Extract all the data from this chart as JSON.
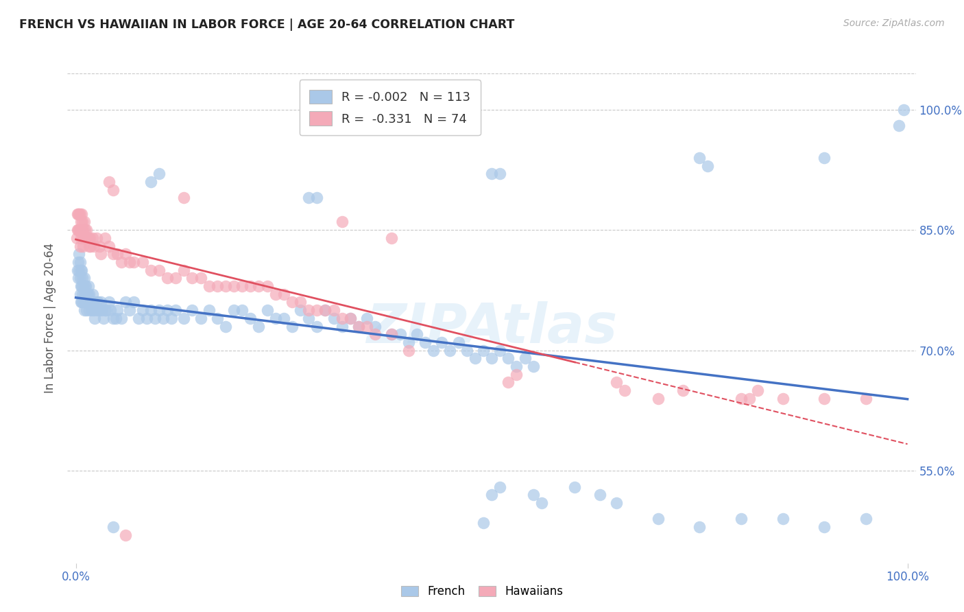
{
  "title": "FRENCH VS HAWAIIAN IN LABOR FORCE | AGE 20-64 CORRELATION CHART",
  "source": "Source: ZipAtlas.com",
  "ylabel": "In Labor Force | Age 20-64",
  "french_R": "-0.002",
  "french_N": "113",
  "hawaiian_R": "-0.331",
  "hawaiian_N": "74",
  "french_color": "#aac8e8",
  "hawaiian_color": "#f4aab8",
  "french_line_color": "#4472c4",
  "hawaiian_line_color": "#e05060",
  "watermark": "ZIPAtlas",
  "xlim": [
    -0.01,
    1.01
  ],
  "ylim": [
    0.435,
    1.045
  ],
  "ytick_vals": [
    0.55,
    0.7,
    0.85,
    1.0
  ],
  "ytick_labels": [
    "55.0%",
    "70.0%",
    "85.0%",
    "100.0%"
  ],
  "xtick_vals": [
    0.0,
    1.0
  ],
  "xtick_labels": [
    "0.0%",
    "100.0%"
  ],
  "french_scatter": [
    [
      0.002,
      0.8
    ],
    [
      0.003,
      0.81
    ],
    [
      0.003,
      0.79
    ],
    [
      0.004,
      0.8
    ],
    [
      0.004,
      0.82
    ],
    [
      0.005,
      0.81
    ],
    [
      0.005,
      0.79
    ],
    [
      0.005,
      0.77
    ],
    [
      0.006,
      0.8
    ],
    [
      0.006,
      0.78
    ],
    [
      0.006,
      0.76
    ],
    [
      0.007,
      0.8
    ],
    [
      0.007,
      0.78
    ],
    [
      0.007,
      0.76
    ],
    [
      0.008,
      0.79
    ],
    [
      0.008,
      0.77
    ],
    [
      0.009,
      0.78
    ],
    [
      0.009,
      0.76
    ],
    [
      0.01,
      0.79
    ],
    [
      0.01,
      0.77
    ],
    [
      0.01,
      0.75
    ],
    [
      0.011,
      0.78
    ],
    [
      0.011,
      0.76
    ],
    [
      0.012,
      0.78
    ],
    [
      0.012,
      0.76
    ],
    [
      0.013,
      0.77
    ],
    [
      0.013,
      0.75
    ],
    [
      0.014,
      0.77
    ],
    [
      0.015,
      0.78
    ],
    [
      0.015,
      0.76
    ],
    [
      0.016,
      0.77
    ],
    [
      0.016,
      0.75
    ],
    [
      0.017,
      0.76
    ],
    [
      0.018,
      0.76
    ],
    [
      0.019,
      0.75
    ],
    [
      0.02,
      0.77
    ],
    [
      0.021,
      0.76
    ],
    [
      0.022,
      0.75
    ],
    [
      0.023,
      0.74
    ],
    [
      0.025,
      0.76
    ],
    [
      0.026,
      0.75
    ],
    [
      0.027,
      0.76
    ],
    [
      0.028,
      0.75
    ],
    [
      0.03,
      0.76
    ],
    [
      0.031,
      0.75
    ],
    [
      0.033,
      0.74
    ],
    [
      0.035,
      0.75
    ],
    [
      0.037,
      0.75
    ],
    [
      0.04,
      0.76
    ],
    [
      0.042,
      0.75
    ],
    [
      0.045,
      0.74
    ],
    [
      0.048,
      0.74
    ],
    [
      0.05,
      0.75
    ],
    [
      0.055,
      0.74
    ],
    [
      0.06,
      0.76
    ],
    [
      0.065,
      0.75
    ],
    [
      0.07,
      0.76
    ],
    [
      0.075,
      0.74
    ],
    [
      0.08,
      0.75
    ],
    [
      0.085,
      0.74
    ],
    [
      0.09,
      0.75
    ],
    [
      0.095,
      0.74
    ],
    [
      0.1,
      0.75
    ],
    [
      0.105,
      0.74
    ],
    [
      0.11,
      0.75
    ],
    [
      0.115,
      0.74
    ],
    [
      0.12,
      0.75
    ],
    [
      0.13,
      0.74
    ],
    [
      0.14,
      0.75
    ],
    [
      0.15,
      0.74
    ],
    [
      0.16,
      0.75
    ],
    [
      0.17,
      0.74
    ],
    [
      0.18,
      0.73
    ],
    [
      0.19,
      0.75
    ],
    [
      0.2,
      0.75
    ],
    [
      0.21,
      0.74
    ],
    [
      0.22,
      0.73
    ],
    [
      0.23,
      0.75
    ],
    [
      0.24,
      0.74
    ],
    [
      0.25,
      0.74
    ],
    [
      0.26,
      0.73
    ],
    [
      0.27,
      0.75
    ],
    [
      0.28,
      0.74
    ],
    [
      0.29,
      0.73
    ],
    [
      0.3,
      0.75
    ],
    [
      0.31,
      0.74
    ],
    [
      0.32,
      0.73
    ],
    [
      0.33,
      0.74
    ],
    [
      0.34,
      0.73
    ],
    [
      0.35,
      0.74
    ],
    [
      0.36,
      0.73
    ],
    [
      0.38,
      0.72
    ],
    [
      0.39,
      0.72
    ],
    [
      0.4,
      0.71
    ],
    [
      0.41,
      0.72
    ],
    [
      0.42,
      0.71
    ],
    [
      0.43,
      0.7
    ],
    [
      0.44,
      0.71
    ],
    [
      0.45,
      0.7
    ],
    [
      0.46,
      0.71
    ],
    [
      0.47,
      0.7
    ],
    [
      0.48,
      0.69
    ],
    [
      0.49,
      0.7
    ],
    [
      0.5,
      0.69
    ],
    [
      0.51,
      0.7
    ],
    [
      0.52,
      0.69
    ],
    [
      0.53,
      0.68
    ],
    [
      0.54,
      0.69
    ],
    [
      0.55,
      0.68
    ],
    [
      0.09,
      0.91
    ],
    [
      0.1,
      0.92
    ],
    [
      0.28,
      0.89
    ],
    [
      0.29,
      0.89
    ],
    [
      0.5,
      0.92
    ],
    [
      0.51,
      0.92
    ],
    [
      0.75,
      0.94
    ],
    [
      0.76,
      0.93
    ],
    [
      0.9,
      0.94
    ],
    [
      0.99,
      0.98
    ],
    [
      0.995,
      1.0
    ],
    [
      0.045,
      0.48
    ],
    [
      0.5,
      0.52
    ],
    [
      0.51,
      0.53
    ],
    [
      0.55,
      0.52
    ],
    [
      0.56,
      0.51
    ],
    [
      0.49,
      0.485
    ],
    [
      0.6,
      0.53
    ],
    [
      0.63,
      0.52
    ],
    [
      0.65,
      0.51
    ],
    [
      0.7,
      0.49
    ],
    [
      0.75,
      0.48
    ],
    [
      0.8,
      0.49
    ],
    [
      0.85,
      0.49
    ],
    [
      0.9,
      0.48
    ],
    [
      0.95,
      0.49
    ]
  ],
  "hawaiian_scatter": [
    [
      0.001,
      0.84
    ],
    [
      0.002,
      0.87
    ],
    [
      0.002,
      0.85
    ],
    [
      0.003,
      0.87
    ],
    [
      0.003,
      0.85
    ],
    [
      0.004,
      0.87
    ],
    [
      0.004,
      0.85
    ],
    [
      0.005,
      0.87
    ],
    [
      0.005,
      0.85
    ],
    [
      0.005,
      0.83
    ],
    [
      0.006,
      0.86
    ],
    [
      0.006,
      0.84
    ],
    [
      0.007,
      0.87
    ],
    [
      0.007,
      0.85
    ],
    [
      0.008,
      0.86
    ],
    [
      0.008,
      0.84
    ],
    [
      0.009,
      0.85
    ],
    [
      0.009,
      0.83
    ],
    [
      0.01,
      0.86
    ],
    [
      0.01,
      0.84
    ],
    [
      0.011,
      0.85
    ],
    [
      0.012,
      0.84
    ],
    [
      0.013,
      0.85
    ],
    [
      0.014,
      0.84
    ],
    [
      0.015,
      0.84
    ],
    [
      0.016,
      0.83
    ],
    [
      0.017,
      0.84
    ],
    [
      0.018,
      0.83
    ],
    [
      0.02,
      0.84
    ],
    [
      0.022,
      0.83
    ],
    [
      0.025,
      0.84
    ],
    [
      0.028,
      0.83
    ],
    [
      0.03,
      0.82
    ],
    [
      0.035,
      0.84
    ],
    [
      0.04,
      0.83
    ],
    [
      0.045,
      0.82
    ],
    [
      0.05,
      0.82
    ],
    [
      0.055,
      0.81
    ],
    [
      0.06,
      0.82
    ],
    [
      0.065,
      0.81
    ],
    [
      0.07,
      0.81
    ],
    [
      0.08,
      0.81
    ],
    [
      0.09,
      0.8
    ],
    [
      0.1,
      0.8
    ],
    [
      0.11,
      0.79
    ],
    [
      0.12,
      0.79
    ],
    [
      0.13,
      0.8
    ],
    [
      0.14,
      0.79
    ],
    [
      0.15,
      0.79
    ],
    [
      0.16,
      0.78
    ],
    [
      0.17,
      0.78
    ],
    [
      0.18,
      0.78
    ],
    [
      0.19,
      0.78
    ],
    [
      0.2,
      0.78
    ],
    [
      0.21,
      0.78
    ],
    [
      0.22,
      0.78
    ],
    [
      0.23,
      0.78
    ],
    [
      0.24,
      0.77
    ],
    [
      0.25,
      0.77
    ],
    [
      0.26,
      0.76
    ],
    [
      0.27,
      0.76
    ],
    [
      0.28,
      0.75
    ],
    [
      0.29,
      0.75
    ],
    [
      0.3,
      0.75
    ],
    [
      0.31,
      0.75
    ],
    [
      0.32,
      0.74
    ],
    [
      0.33,
      0.74
    ],
    [
      0.34,
      0.73
    ],
    [
      0.35,
      0.73
    ],
    [
      0.36,
      0.72
    ],
    [
      0.38,
      0.72
    ],
    [
      0.4,
      0.7
    ],
    [
      0.04,
      0.91
    ],
    [
      0.045,
      0.9
    ],
    [
      0.13,
      0.89
    ],
    [
      0.32,
      0.86
    ],
    [
      0.38,
      0.84
    ],
    [
      0.06,
      0.47
    ],
    [
      0.52,
      0.66
    ],
    [
      0.53,
      0.67
    ],
    [
      0.65,
      0.66
    ],
    [
      0.66,
      0.65
    ],
    [
      0.7,
      0.64
    ],
    [
      0.73,
      0.65
    ],
    [
      0.8,
      0.64
    ],
    [
      0.81,
      0.64
    ],
    [
      0.82,
      0.65
    ],
    [
      0.85,
      0.64
    ],
    [
      0.9,
      0.64
    ],
    [
      0.95,
      0.64
    ]
  ]
}
